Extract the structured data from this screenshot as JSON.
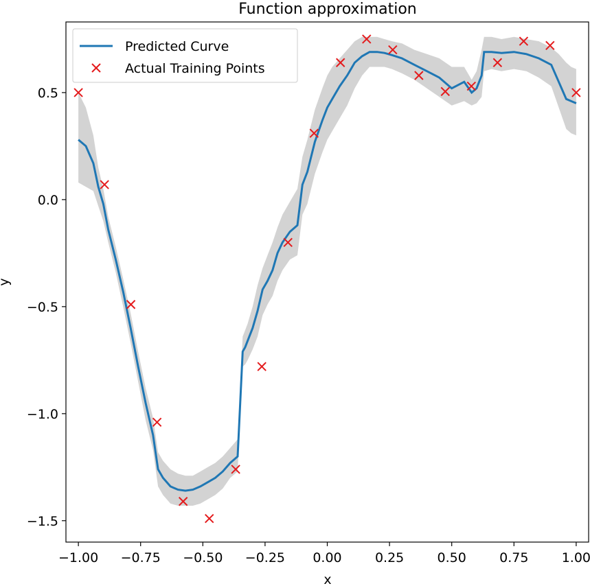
{
  "chart_data": {
    "type": "line",
    "title": "Function approximation",
    "xlabel": "x",
    "ylabel": "y",
    "xlim": [
      -1.05,
      1.05
    ],
    "ylim": [
      -1.6,
      0.83
    ],
    "xticks": [
      -1.0,
      -0.75,
      -0.5,
      -0.25,
      0.0,
      0.25,
      0.5,
      0.75,
      1.0
    ],
    "xtick_labels": [
      "−1.00",
      "−0.75",
      "−0.50",
      "−0.25",
      "0.00",
      "0.25",
      "0.50",
      "0.75",
      "1.00"
    ],
    "yticks": [
      0.5,
      0.0,
      -0.5,
      -1.0,
      -1.5
    ],
    "ytick_labels": [
      "0.5",
      "0.0",
      "−0.5",
      "−1.0",
      "−1.5"
    ],
    "legend": {
      "position": "upper-left",
      "entries": [
        "Predicted Curve",
        "Actual Training Points"
      ]
    },
    "colors": {
      "curve": "#1f77b4",
      "points": "#e41a1c",
      "band": "#d3d3d3"
    },
    "series": [
      {
        "name": "Predicted Curve",
        "x": [
          -1.0,
          -0.97,
          -0.94,
          -0.92,
          -0.9,
          -0.88,
          -0.85,
          -0.82,
          -0.79,
          -0.76,
          -0.73,
          -0.7,
          -0.68,
          -0.66,
          -0.63,
          -0.6,
          -0.57,
          -0.54,
          -0.51,
          -0.48,
          -0.45,
          -0.42,
          -0.39,
          -0.36,
          -0.34,
          -0.33,
          -0.32,
          -0.3,
          -0.28,
          -0.26,
          -0.24,
          -0.22,
          -0.2,
          -0.18,
          -0.15,
          -0.12,
          -0.1,
          -0.08,
          -0.05,
          -0.02,
          0.0,
          0.02,
          0.05,
          0.08,
          0.11,
          0.14,
          0.17,
          0.2,
          0.23,
          0.26,
          0.3,
          0.35,
          0.4,
          0.45,
          0.5,
          0.55,
          0.58,
          0.6,
          0.62,
          0.63,
          0.66,
          0.7,
          0.75,
          0.8,
          0.85,
          0.9,
          0.93,
          0.96,
          0.98,
          1.0
        ],
        "y": [
          0.28,
          0.25,
          0.17,
          0.06,
          -0.02,
          -0.14,
          -0.28,
          -0.43,
          -0.6,
          -0.78,
          -0.95,
          -1.1,
          -1.26,
          -1.3,
          -1.34,
          -1.355,
          -1.36,
          -1.355,
          -1.34,
          -1.32,
          -1.3,
          -1.27,
          -1.23,
          -1.2,
          -0.71,
          -0.69,
          -0.66,
          -0.6,
          -0.52,
          -0.42,
          -0.38,
          -0.33,
          -0.25,
          -0.2,
          -0.15,
          -0.12,
          0.07,
          0.13,
          0.27,
          0.37,
          0.43,
          0.47,
          0.53,
          0.58,
          0.64,
          0.67,
          0.69,
          0.69,
          0.685,
          0.675,
          0.66,
          0.63,
          0.6,
          0.57,
          0.52,
          0.55,
          0.5,
          0.52,
          0.58,
          0.69,
          0.69,
          0.685,
          0.69,
          0.68,
          0.66,
          0.63,
          0.55,
          0.47,
          0.46,
          0.45
        ]
      },
      {
        "name": "Upper band",
        "x": [
          -1.0,
          -0.97,
          -0.94,
          -0.92,
          -0.9,
          -0.88,
          -0.85,
          -0.82,
          -0.79,
          -0.76,
          -0.73,
          -0.7,
          -0.68,
          -0.66,
          -0.63,
          -0.6,
          -0.57,
          -0.54,
          -0.51,
          -0.48,
          -0.45,
          -0.42,
          -0.39,
          -0.36,
          -0.34,
          -0.33,
          -0.32,
          -0.3,
          -0.28,
          -0.26,
          -0.24,
          -0.22,
          -0.2,
          -0.18,
          -0.15,
          -0.12,
          -0.1,
          -0.08,
          -0.05,
          -0.02,
          0.0,
          0.02,
          0.05,
          0.08,
          0.11,
          0.14,
          0.17,
          0.2,
          0.23,
          0.26,
          0.3,
          0.35,
          0.4,
          0.45,
          0.5,
          0.55,
          0.58,
          0.6,
          0.62,
          0.63,
          0.66,
          0.7,
          0.75,
          0.8,
          0.85,
          0.9,
          0.93,
          0.96,
          0.98,
          1.0
        ],
        "y": [
          0.5,
          0.43,
          0.3,
          0.15,
          0.05,
          -0.08,
          -0.22,
          -0.37,
          -0.53,
          -0.71,
          -0.88,
          -1.02,
          -1.18,
          -1.22,
          -1.26,
          -1.28,
          -1.29,
          -1.29,
          -1.27,
          -1.25,
          -1.23,
          -1.2,
          -1.16,
          -1.12,
          -0.64,
          -0.61,
          -0.58,
          -0.5,
          -0.4,
          -0.32,
          -0.26,
          -0.2,
          -0.13,
          -0.07,
          -0.01,
          0.05,
          0.2,
          0.28,
          0.42,
          0.52,
          0.58,
          0.62,
          0.66,
          0.7,
          0.74,
          0.76,
          0.76,
          0.76,
          0.75,
          0.74,
          0.73,
          0.7,
          0.68,
          0.66,
          0.62,
          0.62,
          0.56,
          0.6,
          0.7,
          0.76,
          0.76,
          0.75,
          0.76,
          0.75,
          0.74,
          0.71,
          0.68,
          0.64,
          0.62,
          0.61
        ]
      },
      {
        "name": "Lower band",
        "x": [
          -1.0,
          -0.97,
          -0.94,
          -0.92,
          -0.9,
          -0.88,
          -0.85,
          -0.82,
          -0.79,
          -0.76,
          -0.73,
          -0.7,
          -0.68,
          -0.66,
          -0.63,
          -0.6,
          -0.57,
          -0.54,
          -0.51,
          -0.48,
          -0.45,
          -0.42,
          -0.39,
          -0.36,
          -0.34,
          -0.33,
          -0.32,
          -0.3,
          -0.28,
          -0.26,
          -0.24,
          -0.22,
          -0.2,
          -0.18,
          -0.15,
          -0.12,
          -0.1,
          -0.08,
          -0.05,
          -0.02,
          0.0,
          0.02,
          0.05,
          0.08,
          0.11,
          0.14,
          0.17,
          0.2,
          0.23,
          0.26,
          0.3,
          0.35,
          0.4,
          0.45,
          0.5,
          0.55,
          0.58,
          0.6,
          0.62,
          0.63,
          0.66,
          0.7,
          0.75,
          0.8,
          0.85,
          0.9,
          0.93,
          0.96,
          0.98,
          1.0
        ],
        "y": [
          0.08,
          0.06,
          0.04,
          -0.03,
          -0.1,
          -0.2,
          -0.34,
          -0.5,
          -0.67,
          -0.85,
          -1.03,
          -1.17,
          -1.34,
          -1.38,
          -1.42,
          -1.43,
          -1.43,
          -1.43,
          -1.42,
          -1.4,
          -1.38,
          -1.35,
          -1.3,
          -1.27,
          -0.78,
          -0.77,
          -0.75,
          -0.7,
          -0.64,
          -0.54,
          -0.49,
          -0.45,
          -0.38,
          -0.33,
          -0.28,
          -0.26,
          -0.07,
          -0.02,
          0.12,
          0.22,
          0.28,
          0.32,
          0.38,
          0.44,
          0.52,
          0.58,
          0.62,
          0.62,
          0.62,
          0.61,
          0.59,
          0.56,
          0.52,
          0.48,
          0.44,
          0.46,
          0.44,
          0.45,
          0.48,
          0.6,
          0.61,
          0.6,
          0.61,
          0.6,
          0.57,
          0.53,
          0.43,
          0.33,
          0.31,
          0.3
        ]
      },
      {
        "name": "Actual Training Points",
        "x": [
          -1.0,
          -0.895,
          -0.789,
          -0.684,
          -0.579,
          -0.474,
          -0.368,
          -0.263,
          -0.158,
          -0.053,
          0.053,
          0.158,
          0.263,
          0.368,
          0.474,
          0.579,
          0.684,
          0.789,
          0.895,
          1.0
        ],
        "y": [
          0.5,
          0.07,
          -0.49,
          -1.04,
          -1.41,
          -1.49,
          -1.26,
          -0.78,
          -0.2,
          0.31,
          0.64,
          0.75,
          0.7,
          0.58,
          0.505,
          0.53,
          0.64,
          0.74,
          0.72,
          0.5
        ]
      }
    ]
  }
}
